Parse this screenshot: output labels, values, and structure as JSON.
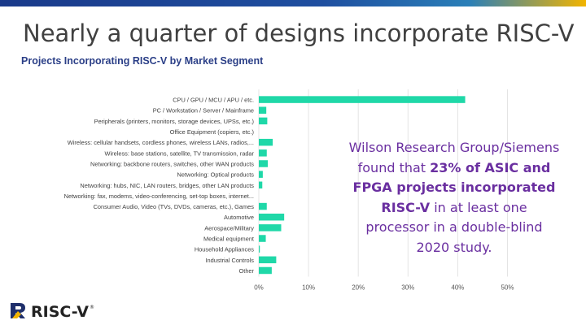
{
  "slide": {
    "title": "Nearly a quarter of designs incorporate RISC-V"
  },
  "callout": {
    "part1": "Wilson Research Group/Siemens found that ",
    "highlight": "23% of ASIC and FPGA projects incorporated RISC-V",
    "part2": " in at least one processor in a double-blind 2020 study."
  },
  "logo": {
    "text": "RISC-V",
    "mark": "®",
    "icon": "risc-v-logo-icon"
  },
  "colors": {
    "bar": "#1fd8a8",
    "grid": "#e4e4e4",
    "callout_text": "#6a2fa0",
    "chart_title": "#2b3f87"
  },
  "chart_data": {
    "type": "bar",
    "orientation": "horizontal",
    "title": "Projects Incorporating RISC-V by Market Segment",
    "categories": [
      "CPU / GPU / MCU / APU / etc.",
      "PC / Workstation / Server / Mainframe",
      "Peripherals (printers, monitors, storage devices, UPSs, etc.)",
      "Office Equipment (copiers, etc.)",
      "Wireless: cellular handsets, cordless phones, wireless LANs, radios,...",
      "Wireless: base stations, satellite, TV transmission, radar",
      "Networking: backbone routers, switches, other WAN products",
      "Networking: Optical products",
      "Networking: hubs, NIC, LAN routers, bridges, other LAN products",
      "Networking: fax, modems, video-conferencing, set-top boxes, internet...",
      "Consumer Audio, Video (TVs, DVDs, cameras, etc.), Games",
      "Automotive",
      "Aerospace/Military",
      "Medical equipment",
      "Household Appliances",
      "Industrial Controls",
      "Other"
    ],
    "values": [
      41.5,
      1.5,
      1.7,
      0,
      2.8,
      1.6,
      1.8,
      0.8,
      0.7,
      0,
      1.6,
      5.1,
      4.5,
      1.4,
      0.2,
      3.5,
      2.6
    ],
    "xticks": [
      "0%",
      "10%",
      "20%",
      "30%",
      "40%",
      "50%"
    ],
    "xlim": [
      0,
      50
    ],
    "grid": true,
    "legend": "none"
  }
}
